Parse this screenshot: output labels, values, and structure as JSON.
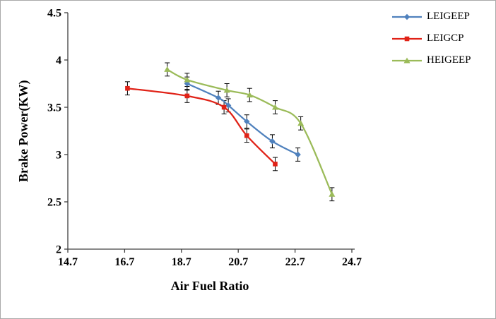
{
  "chart_data": {
    "type": "line",
    "title": "",
    "xlabel": "Air Fuel Ratio",
    "ylabel": "Brake Power(KW)",
    "xlim": [
      14.7,
      24.7
    ],
    "ylim": [
      2,
      4.5
    ],
    "x_ticks": [
      "14.7",
      "16.7",
      "18.7",
      "20.7",
      "22.7",
      "24.7"
    ],
    "y_ticks": [
      "2",
      "2.5",
      "3",
      "3.5",
      "4",
      "4.5"
    ],
    "grid": false,
    "legend_position": "top-right",
    "error_bar": 0.07,
    "axis_color": "#404040",
    "error_bar_color": "#000000",
    "series": [
      {
        "name": "LEIGEEP",
        "color": "#4f81bd",
        "marker": "diamond",
        "x": [
          18.9,
          20.0,
          20.35,
          21.0,
          21.9,
          22.8
        ],
        "y": [
          3.75,
          3.6,
          3.52,
          3.35,
          3.14,
          3.0
        ]
      },
      {
        "name": "LEIGCP",
        "color": "#e02217",
        "marker": "square",
        "x": [
          16.8,
          18.9,
          20.2,
          21.0,
          22.0
        ],
        "y": [
          3.7,
          3.62,
          3.5,
          3.2,
          2.9
        ]
      },
      {
        "name": "HEIGEEP",
        "color": "#9bbb59",
        "marker": "triangle",
        "x": [
          18.2,
          18.9,
          20.3,
          21.1,
          22.0,
          22.9,
          24.0
        ],
        "y": [
          3.9,
          3.79,
          3.68,
          3.63,
          3.5,
          3.33,
          2.58
        ]
      }
    ]
  }
}
